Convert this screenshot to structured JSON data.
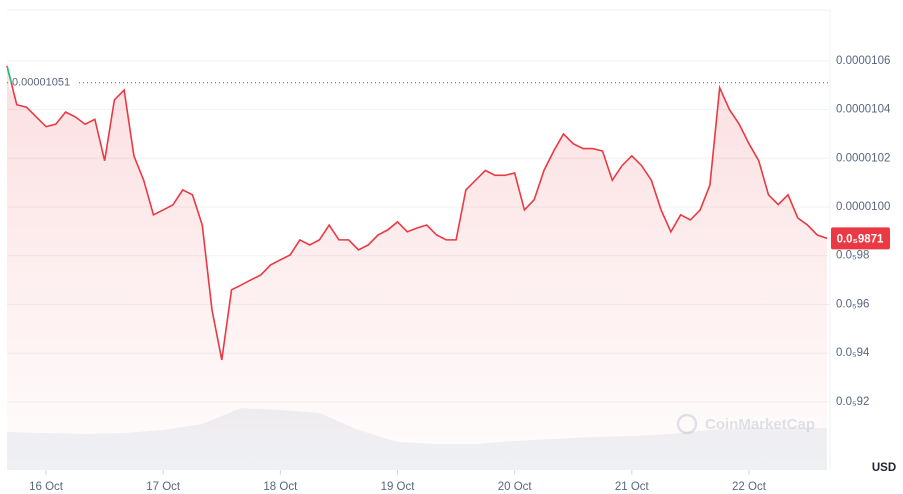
{
  "chart_data": {
    "type": "line",
    "series": [
      {
        "color": "#ea3943",
        "up_color": "#16c784",
        "values": [
          1.058e-05,
          1.042e-05,
          1.041e-05,
          1.037e-05,
          1.033e-05,
          1.034e-05,
          1.039e-05,
          1.037e-05,
          1.034e-05,
          1.036e-05,
          1.019e-05,
          1.044e-05,
          1.048e-05,
          1.021e-05,
          1.011e-05,
          9.968e-06,
          9.988e-06,
          1.0009e-05,
          1.007e-05,
          1.005e-05,
          9.926e-06,
          9.577e-06,
          9.372e-06,
          9.66e-06,
          9.68e-06,
          9.701e-06,
          9.721e-06,
          9.762e-06,
          9.783e-06,
          9.803e-06,
          9.865e-06,
          9.844e-06,
          9.865e-06,
          9.926e-06,
          9.865e-06,
          9.865e-06,
          9.824e-06,
          9.844e-06,
          9.885e-06,
          9.906e-06,
          9.939e-06,
          9.898e-06,
          9.914e-06,
          9.926e-06,
          9.885e-06,
          9.865e-06,
          9.865e-06,
          1.007e-05,
          1.011e-05,
          1.015e-05,
          1.013e-05,
          1.013e-05,
          1.014e-05,
          9.988e-06,
          1.003e-05,
          1.015e-05,
          1.023e-05,
          1.03e-05,
          1.026e-05,
          1.024e-05,
          1.024e-05,
          1.023e-05,
          1.011e-05,
          1.017e-05,
          1.021e-05,
          1.017e-05,
          1.011e-05,
          9.988e-06,
          9.898e-06,
          9.968e-06,
          9.947e-06,
          9.988e-06,
          1.009e-05,
          1.049e-05,
          1.04e-05,
          1.034e-05,
          1.026e-05,
          1.019e-05,
          1.005e-05,
          1.001e-05,
          1.005e-05,
          9.955e-06,
          9.926e-06,
          9.885e-06,
          9.871e-06
        ]
      }
    ],
    "volume": {
      "color": "#eff2f5",
      "values": [
        38,
        37,
        36,
        37,
        40,
        46,
        62,
        60,
        57,
        40,
        28,
        26,
        26,
        29,
        31,
        33,
        34,
        36,
        40,
        42,
        42,
        42
      ],
      "ylim": [
        0,
        70
      ]
    },
    "xlim": [
      0,
      84.3
    ],
    "xticks": [
      {
        "value": 4,
        "label": "16 Oct"
      },
      {
        "value": 16,
        "label": "17 Oct"
      },
      {
        "value": 28,
        "label": "18 Oct"
      },
      {
        "value": 40,
        "label": "19 Oct"
      },
      {
        "value": 52,
        "label": "20 Oct"
      },
      {
        "value": 64,
        "label": "21 Oct"
      },
      {
        "value": 76,
        "label": "22 Oct"
      }
    ],
    "ylim": [
      8.92e-06,
      1.0809e-05
    ],
    "yticks": [
      1.06e-05,
      1.04e-05,
      1.02e-05,
      {
        "value": 1e-05,
        "label": "0.0000100"
      },
      {
        "value": 9.8e-06,
        "label": "0.0₅98"
      },
      {
        "value": 9.6e-06,
        "label": "0.0₅96"
      },
      {
        "value": 9.4e-06,
        "label": "0.0₅94"
      },
      {
        "value": 9.2e-06,
        "label": "0.0₅92"
      }
    ],
    "baseline": {
      "value": 1.051e-05,
      "label": "0.00001051"
    },
    "current_price": {
      "value": 9.871e-06,
      "label": "0.0₅9871"
    },
    "currency": "USD",
    "watermark": "CoinMarketCap",
    "grid": true
  }
}
